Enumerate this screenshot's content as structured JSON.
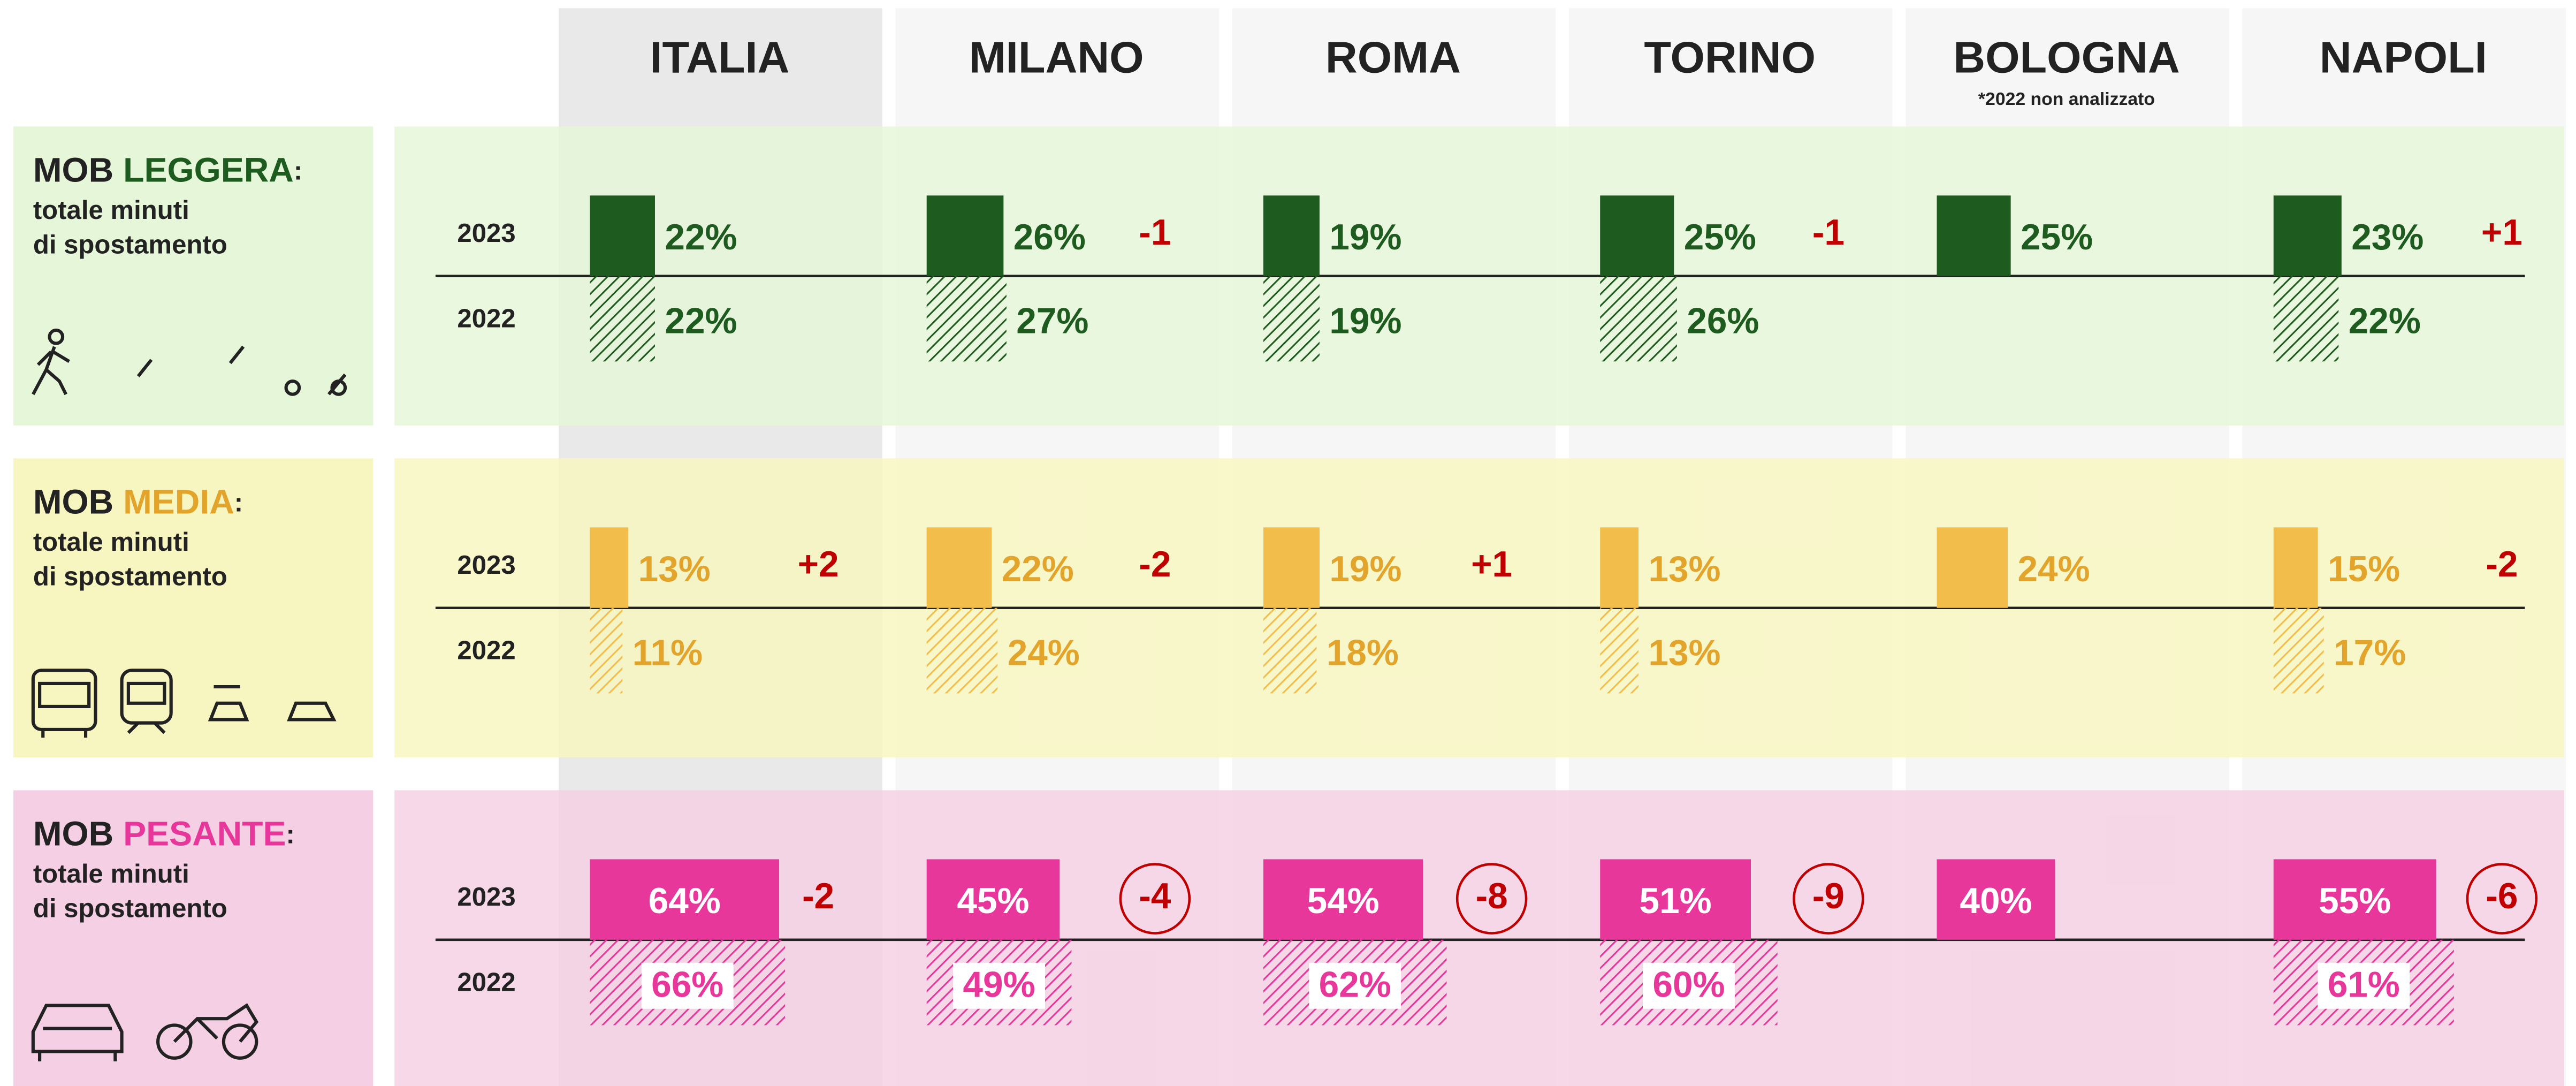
{
  "columns": [
    "ITALIA",
    "MILANO",
    "ROMA",
    "TORINO",
    "BOLOGNA",
    "NAPOLI"
  ],
  "note": "*2022 non analizzato",
  "years": [
    "2023",
    "2022"
  ],
  "rows": [
    {
      "label_prefix": "MOB ",
      "label_key": "LEGGERA",
      "label_suffix": ":",
      "subtitle": [
        "totale minuti",
        "di spostamento"
      ],
      "bar_color": "#1d5b1f",
      "text_color": "#1d5b1f",
      "band_color": "#e6f7d9",
      "values_2023": [
        22,
        26,
        19,
        25,
        25,
        23
      ],
      "value_labels_2023": [
        "22%",
        "26%",
        "19%",
        "25%",
        "25%",
        "23%"
      ],
      "values_2022": [
        22,
        27,
        19,
        26,
        null,
        22
      ],
      "value_labels_2022": [
        "22%",
        "27%",
        "19%",
        "26%",
        null,
        "22%"
      ],
      "diffs": [
        null,
        -1,
        null,
        -1,
        null,
        {
          "value": 1,
          "label": "+1"
        }
      ],
      "circled": [
        false,
        false,
        false,
        false,
        false,
        false
      ]
    },
    {
      "label_prefix": "MOB ",
      "label_key": "MEDIA",
      "label_suffix": ":",
      "subtitle": [
        "totale minuti",
        "di spostamento"
      ],
      "bar_color": "#f2bd4a",
      "text_color": "#e3a42c",
      "band_color": "#f8f6c0",
      "values_2023": [
        13,
        22,
        19,
        13,
        24,
        15
      ],
      "value_labels_2023": [
        "13%",
        "22%",
        "19%",
        "13%",
        "24%",
        "15%"
      ],
      "values_2022": [
        11,
        24,
        18,
        13,
        null,
        17
      ],
      "value_labels_2022": [
        "11%",
        "24%",
        "18%",
        "13%",
        null,
        "17%"
      ],
      "diffs": [
        {
          "value": 2,
          "label": "+2"
        },
        -2,
        {
          "value": 1,
          "label": "+1"
        },
        null,
        null,
        -2
      ],
      "circled": [
        false,
        false,
        false,
        false,
        false,
        false
      ]
    },
    {
      "label_prefix": "MOB ",
      "label_key": "PESANTE",
      "label_suffix": ":",
      "subtitle": [
        "totale minuti",
        "di spostamento"
      ],
      "bar_color": "#e8379b",
      "text_color": "#e8379b",
      "band_color": "#f5cfe3",
      "values_2023": [
        64,
        45,
        54,
        51,
        40,
        55
      ],
      "value_labels_2023": [
        "64%",
        "45%",
        "54%",
        "51%",
        "40%",
        "55%"
      ],
      "values_2022": [
        66,
        49,
        62,
        60,
        null,
        61
      ],
      "value_labels_2022": [
        "66%",
        "49%",
        "62%",
        "60%",
        null,
        "61%"
      ],
      "diffs": [
        -2,
        -4,
        -8,
        -9,
        null,
        -6
      ],
      "circled": [
        false,
        true,
        true,
        true,
        false,
        true
      ]
    }
  ]
}
